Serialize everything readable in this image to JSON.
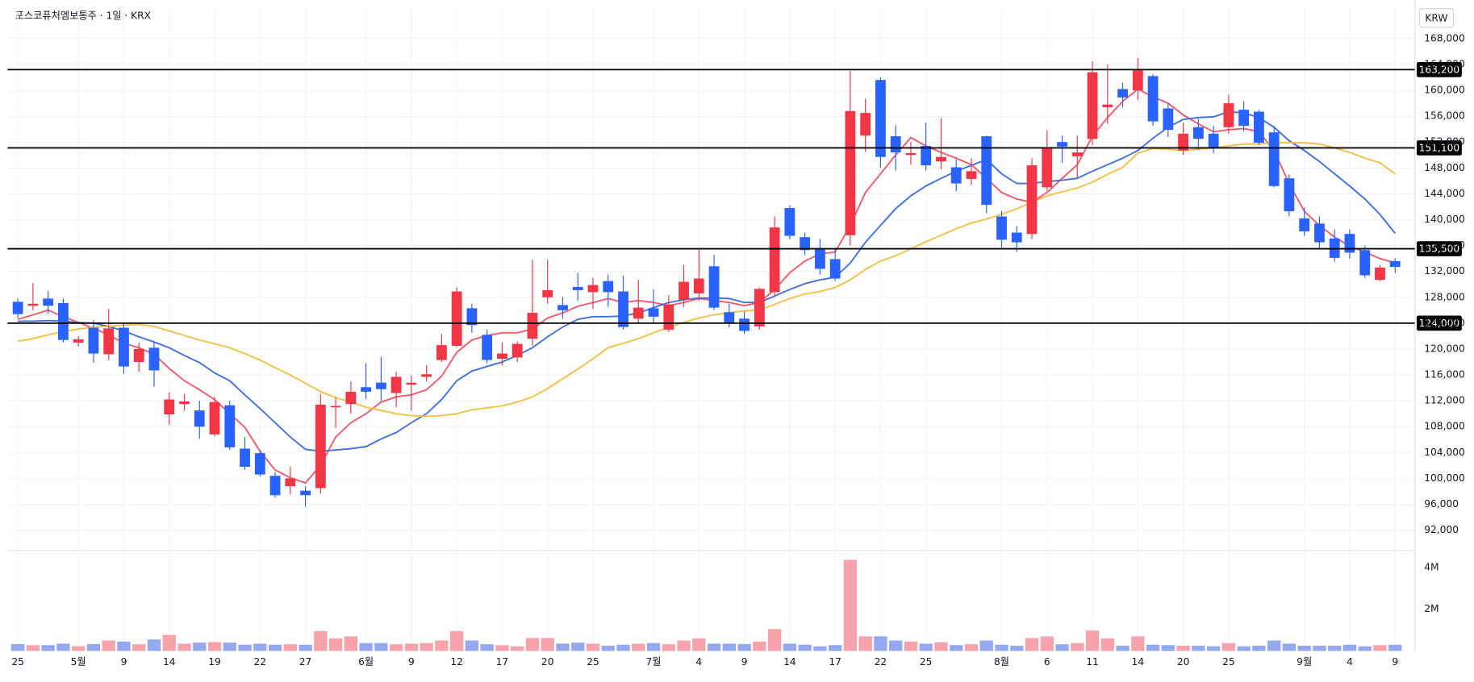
{
  "chart_data": {
    "type": "candlestick",
    "title": "포스코퓨처엠보통주 · 1일 · KRX",
    "currency": "KRW",
    "categories": [
      "25",
      null,
      null,
      null,
      "5월",
      null,
      null,
      "9",
      null,
      null,
      "14",
      null,
      null,
      "19",
      null,
      null,
      "22",
      null,
      null,
      "27",
      null,
      null,
      null,
      "6월",
      null,
      null,
      "9",
      null,
      null,
      "12",
      null,
      null,
      "17",
      null,
      null,
      "20",
      null,
      null,
      "25",
      null,
      null,
      null,
      "7월",
      null,
      null,
      "4",
      null,
      null,
      "9",
      null,
      null,
      "14",
      null,
      null,
      "17",
      null,
      null,
      "22",
      null,
      null,
      "25",
      null,
      null,
      null,
      null,
      "8월",
      null,
      null,
      "6",
      null,
      null,
      "11",
      null,
      null,
      "14",
      null,
      null,
      "20",
      null,
      null,
      "25",
      null,
      null,
      null,
      null,
      "9월",
      null,
      null,
      "4",
      null,
      null,
      "9"
    ],
    "open": [
      127300,
      126700,
      127800,
      127100,
      121000,
      123300,
      119200,
      123300,
      118000,
      120200,
      109900,
      111500,
      110500,
      106800,
      111300,
      104600,
      103900,
      100400,
      98800,
      98100,
      98500,
      111000,
      111500,
      114100,
      114800,
      113200,
      114500,
      115700,
      118300,
      120500,
      126300,
      122200,
      118500,
      118700,
      121600,
      128000,
      126800,
      129600,
      128800,
      130500,
      128900,
      124700,
      126300,
      123000,
      127600,
      128600,
      132800,
      125700,
      124700,
      123500,
      128800,
      141800,
      137300,
      135600,
      133900,
      137600,
      153000,
      161600,
      152900,
      150000,
      151400,
      149000,
      148100,
      146300,
      152900,
      140500,
      138000,
      137800,
      145000,
      152000,
      149800,
      152500,
      157400,
      160200,
      160000,
      162200,
      157200,
      150700,
      154300,
      153300,
      154300,
      157000,
      156700,
      153500,
      146400,
      140200,
      139400,
      137100,
      137800,
      135300,
      130700,
      133600
    ],
    "high": [
      127800,
      130200,
      129000,
      127800,
      122000,
      124500,
      126200,
      124000,
      121000,
      121000,
      113300,
      113000,
      112000,
      112600,
      112000,
      106400,
      104400,
      101000,
      101800,
      98800,
      113000,
      112500,
      115000,
      117800,
      118800,
      116500,
      115900,
      117500,
      122300,
      129500,
      127000,
      123000,
      121000,
      121200,
      133800,
      133800,
      128000,
      131800,
      131000,
      131500,
      131300,
      130700,
      129200,
      128300,
      133000,
      135500,
      134600,
      127000,
      125800,
      129500,
      140500,
      142200,
      138000,
      137000,
      135500,
      163000,
      158700,
      162000,
      154600,
      152000,
      155000,
      155700,
      149300,
      149500,
      153000,
      141300,
      139000,
      149500,
      153800,
      153000,
      153000,
      164500,
      164000,
      161200,
      165000,
      162500,
      158000,
      155000,
      155600,
      154500,
      159300,
      158300,
      157000,
      154500,
      147000,
      141900,
      140500,
      138500,
      138500,
      136000,
      133000,
      134000
    ],
    "low": [
      124800,
      126000,
      125500,
      121000,
      120400,
      117900,
      118300,
      116200,
      116500,
      114200,
      108300,
      110500,
      106100,
      106500,
      104400,
      101300,
      100300,
      97000,
      97500,
      95600,
      97600,
      107800,
      110000,
      112300,
      112000,
      111000,
      110500,
      115000,
      118000,
      120300,
      122500,
      117800,
      117500,
      118000,
      120500,
      127000,
      124700,
      127500,
      126200,
      126500,
      123000,
      124000,
      124000,
      122600,
      126500,
      127500,
      126000,
      123300,
      122300,
      123000,
      128000,
      137000,
      134500,
      131500,
      130500,
      136000,
      150500,
      148000,
      147600,
      148500,
      147600,
      147800,
      144400,
      145400,
      141000,
      135500,
      135000,
      137000,
      144500,
      148800,
      146400,
      151500,
      154800,
      157300,
      158500,
      154500,
      152800,
      150000,
      150800,
      150300,
      153300,
      153700,
      151500,
      145000,
      140500,
      137500,
      135500,
      133500,
      134000,
      131000,
      130500,
      131800
    ],
    "close": [
      125400,
      127000,
      126700,
      121400,
      121500,
      119300,
      123200,
      117300,
      120000,
      116700,
      112200,
      111900,
      108000,
      111800,
      104800,
      101800,
      100600,
      97400,
      100000,
      97400,
      111400,
      111200,
      113400,
      113400,
      113800,
      115700,
      114800,
      116100,
      120600,
      128900,
      123700,
      118300,
      119300,
      120800,
      125600,
      129100,
      126000,
      129100,
      129900,
      128800,
      123400,
      126400,
      125000,
      126900,
      130400,
      130900,
      126400,
      124100,
      122800,
      129300,
      138800,
      137500,
      135300,
      132400,
      130900,
      156800,
      156500,
      149700,
      150400,
      150300,
      148400,
      149700,
      145600,
      147500,
      142300,
      136900,
      136500,
      148400,
      151000,
      151300,
      150400,
      162800,
      157800,
      158900,
      163100,
      155200,
      153900,
      153300,
      152500,
      151100,
      158000,
      154500,
      151900,
      145200,
      141300,
      138200,
      136500,
      134100,
      134900,
      131400,
      132600,
      132700
    ],
    "up_color": "#f23645",
    "down_color": "#2962ff",
    "ylim": [
      89000,
      172800
    ],
    "yticks": [
      {
        "value": 92000,
        "label": "92,000"
      },
      {
        "value": 96000,
        "label": "96,000"
      },
      {
        "value": 100000,
        "label": "100,000"
      },
      {
        "value": 104000,
        "label": "104,000"
      },
      {
        "value": 108000,
        "label": "108,000"
      },
      {
        "value": 112000,
        "label": "112,000"
      },
      {
        "value": 116000,
        "label": "116,000"
      },
      {
        "value": 120000,
        "label": "120,000"
      },
      {
        "value": 124000,
        "label": "124,000"
      },
      {
        "value": 128000,
        "label": "128,000"
      },
      {
        "value": 132000,
        "label": "132,000"
      },
      {
        "value": 136000,
        "label": "136,000"
      },
      {
        "value": 140000,
        "label": "140,000"
      },
      {
        "value": 144000,
        "label": "144,000"
      },
      {
        "value": 148000,
        "label": "148,000"
      },
      {
        "value": 152000,
        "label": "152,000"
      },
      {
        "value": 156000,
        "label": "156,000"
      },
      {
        "value": 160000,
        "label": "160,000"
      },
      {
        "value": 164000,
        "label": "164,000"
      },
      {
        "value": 168000,
        "label": "168,000"
      }
    ],
    "grid": true,
    "lines": [
      {
        "color": "#f0596a",
        "values": [
          124600,
          125300,
          126000,
          125000,
          124100,
          123200,
          122200,
          120900,
          120200,
          119200,
          117000,
          115100,
          113700,
          112200,
          110000,
          107900,
          104200,
          101300,
          100100,
          99300,
          102000,
          106400,
          108600,
          110000,
          111800,
          112600,
          112900,
          113700,
          115800,
          119500,
          121400,
          122100,
          122500,
          122500,
          123100,
          124800,
          125600,
          126600,
          127200,
          127800,
          127200,
          127500,
          127200,
          126700,
          127200,
          127800,
          127500,
          127200,
          126700,
          127200,
          129200,
          131800,
          133600,
          134700,
          135000,
          139100,
          144200,
          147100,
          150000,
          152700,
          151400,
          150400,
          149500,
          148500,
          146400,
          144200,
          143200,
          142700,
          144200,
          146400,
          148500,
          152900,
          155800,
          158300,
          160200,
          159000,
          158000,
          156200,
          154800,
          153600,
          153900,
          154100,
          153600,
          150700,
          145600,
          141300,
          139100,
          137300,
          135900,
          135000,
          134000,
          133300
        ]
      },
      {
        "color": "#3f6fe0",
        "values": [
          124300,
          124300,
          124400,
          124300,
          124100,
          124000,
          123500,
          122800,
          121900,
          121100,
          120200,
          119000,
          117900,
          116300,
          115100,
          112900,
          110800,
          108600,
          106400,
          104500,
          104200,
          104400,
          104600,
          104900,
          106100,
          107100,
          108600,
          110000,
          112200,
          115100,
          116600,
          117300,
          118000,
          119000,
          120200,
          121900,
          123400,
          124600,
          125000,
          125000,
          125100,
          125600,
          126400,
          127200,
          127600,
          127900,
          127900,
          127800,
          127200,
          127200,
          128200,
          129200,
          130100,
          130700,
          131100,
          133300,
          136500,
          139100,
          141700,
          143700,
          145200,
          146400,
          147500,
          148400,
          149300,
          147100,
          145600,
          145600,
          145900,
          146100,
          146400,
          147500,
          148500,
          149500,
          150700,
          152600,
          154300,
          155500,
          155800,
          155900,
          156700,
          156500,
          155800,
          154300,
          152200,
          150700,
          149000,
          147100,
          145200,
          143200,
          140800,
          137900
        ]
      },
      {
        "color": "#f4c044",
        "values": [
          121200,
          121600,
          122200,
          122700,
          123100,
          123400,
          123500,
          123700,
          123800,
          123500,
          122800,
          122100,
          121400,
          120800,
          120200,
          119300,
          118300,
          117100,
          116000,
          114700,
          113400,
          112500,
          111800,
          111000,
          110500,
          110000,
          109700,
          109600,
          109700,
          110000,
          110600,
          110900,
          111200,
          111800,
          112600,
          113900,
          115400,
          116900,
          118500,
          120200,
          120900,
          121600,
          122500,
          123400,
          124100,
          124800,
          125300,
          125600,
          125900,
          126000,
          126900,
          127800,
          128500,
          128900,
          129500,
          130700,
          132300,
          133600,
          134400,
          135500,
          136600,
          137600,
          138600,
          139500,
          140100,
          140800,
          141700,
          142700,
          143700,
          144300,
          144900,
          145800,
          147000,
          148100,
          150300,
          151000,
          150900,
          150700,
          150900,
          151100,
          151400,
          151700,
          151700,
          151900,
          151900,
          151900,
          151700,
          151100,
          150400,
          149500,
          148800,
          147100
        ]
      }
    ],
    "levels": [
      {
        "value": 163200,
        "label": "163,200"
      },
      {
        "value": 151100,
        "label": "151,100"
      },
      {
        "value": 135500,
        "label": "135,500"
      },
      {
        "value": 124000,
        "label": "124,000"
      }
    ],
    "volume": {
      "values": [
        330000,
        280000,
        280000,
        350000,
        230000,
        330000,
        500000,
        450000,
        320000,
        550000,
        770000,
        350000,
        400000,
        420000,
        400000,
        300000,
        350000,
        300000,
        320000,
        300000,
        950000,
        600000,
        700000,
        380000,
        380000,
        320000,
        350000,
        380000,
        500000,
        950000,
        500000,
        320000,
        280000,
        220000,
        620000,
        620000,
        350000,
        400000,
        350000,
        250000,
        300000,
        350000,
        380000,
        320000,
        500000,
        600000,
        350000,
        350000,
        330000,
        450000,
        1050000,
        350000,
        300000,
        220000,
        280000,
        4360000,
        700000,
        700000,
        500000,
        450000,
        350000,
        420000,
        280000,
        320000,
        500000,
        300000,
        250000,
        620000,
        700000,
        320000,
        380000,
        980000,
        600000,
        250000,
        700000,
        300000,
        280000,
        250000,
        250000,
        220000,
        380000,
        220000,
        250000,
        500000,
        350000,
        250000,
        250000,
        250000,
        300000,
        220000,
        280000,
        300000
      ],
      "ylim": [
        0,
        4720000
      ],
      "yticks": [
        {
          "value": 2000000,
          "label": "2M"
        },
        {
          "value": 4000000,
          "label": "4M"
        }
      ],
      "up_color": "#f7a3ab",
      "down_color": "#93a9f2"
    }
  }
}
